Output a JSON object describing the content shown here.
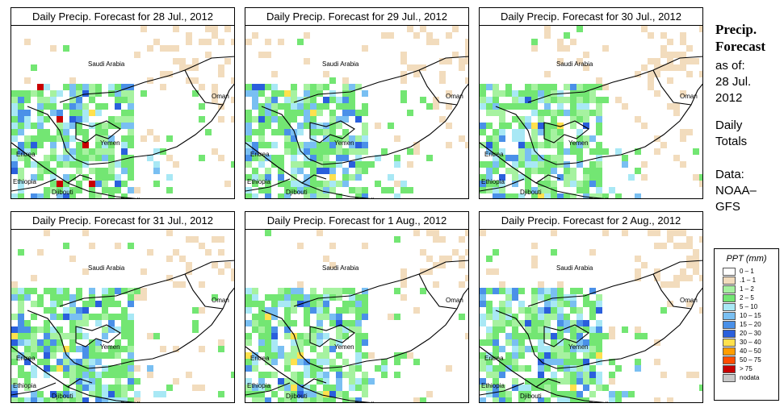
{
  "panels": [
    {
      "title": "Daily Precip. Forecast for  28 Jul., 2012",
      "day": 0
    },
    {
      "title": "Daily Precip. Forecast for  29 Jul., 2012",
      "day": 1
    },
    {
      "title": "Daily Precip. Forecast for  30 Jul., 2012",
      "day": 2
    },
    {
      "title": "Daily Precip. Forecast for  31 Jul., 2012",
      "day": 3
    },
    {
      "title": "Daily Precip. Forecast for  1 Aug., 2012",
      "day": 4
    },
    {
      "title": "Daily Precip. Forecast for  2 Aug., 2012",
      "day": 5
    }
  ],
  "map_labels": {
    "saudi": "Saudi Arabia",
    "oman": "Oman",
    "yemen": "Yemen",
    "eritrea": "Eritrea",
    "ethiopia": "Ethiopia",
    "djibouti": "Djibouti",
    "somalia": "Somalia"
  },
  "sidebar": {
    "line1": "Precip.",
    "line2": "Forecast",
    "line3": "as of:",
    "line4": "28 Jul.",
    "line5": "2012",
    "line6": "Daily",
    "line7": "Totals",
    "line8": "Data:",
    "line9": "NOAA–",
    "line10": "GFS"
  },
  "legend": {
    "title": "PPT (mm)",
    "items": [
      {
        "label": "0 – 1",
        "color": "#ffffff"
      },
      {
        "label": ".1 – 1",
        "color": "#f2dcbd"
      },
      {
        "label": "1 – 2",
        "color": "#a6f2a0"
      },
      {
        "label": "2 – 5",
        "color": "#73e673"
      },
      {
        "label": "5 – 10",
        "color": "#a8e8f5"
      },
      {
        "label": "10 – 15",
        "color": "#79bff2"
      },
      {
        "label": "15 – 20",
        "color": "#4a90e8"
      },
      {
        "label": "20 – 30",
        "color": "#2a5fdc"
      },
      {
        "label": "30 – 40",
        "color": "#ffe14d"
      },
      {
        "label": "40 – 50",
        "color": "#ff9d00"
      },
      {
        "label": "50 – 75",
        "color": "#ff4d00"
      },
      {
        "label": "> 75",
        "color": "#c80000"
      },
      {
        "label": "nodata",
        "color": "#c8c8c8"
      }
    ]
  }
}
